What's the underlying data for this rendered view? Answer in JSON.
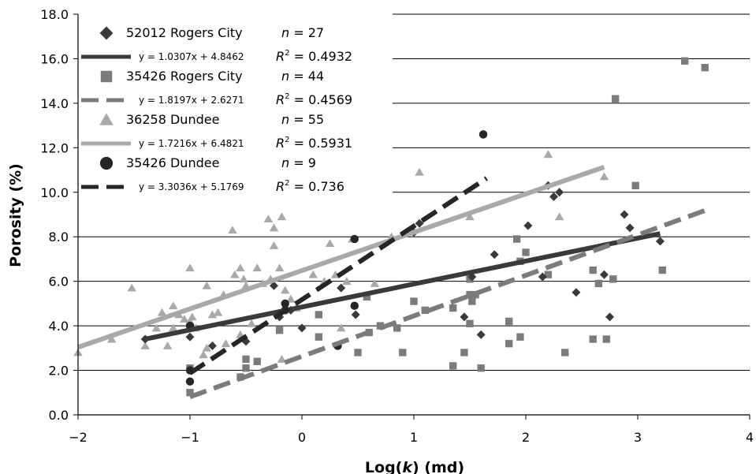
{
  "chart_data": {
    "type": "scatter",
    "xlabel_prefix": "Log(",
    "xlabel_var": "k",
    "xlabel_suffix": ") (md)",
    "ylabel": "Porosity (%)",
    "xlim": [
      -2,
      4
    ],
    "ylim": [
      0,
      18
    ],
    "x_ticks": [
      "−2",
      "−1",
      "0",
      "1",
      "2",
      "3",
      "4"
    ],
    "y_ticks": [
      "0.0",
      "2.0",
      "4.0",
      "6.0",
      "8.0",
      "10.0",
      "12.0",
      "14.0",
      "16.0",
      "18.0"
    ],
    "grid": "horizontal",
    "legend_position": "top-left",
    "series": [
      {
        "name": "52012 Rogers City",
        "n_label": "n",
        "n_value": "= 27",
        "equation": "y = 1.0307x + 4.8462",
        "r2_label": "R",
        "r2_value": "= 0.4932",
        "marker": "diamond",
        "color": "#3a3a3a",
        "line_style": "solid",
        "fit": {
          "slope": 1.0307,
          "intercept": 4.8462,
          "x_range": [
            -1.4,
            3.2
          ]
        },
        "points": [
          [
            -1.4,
            3.4
          ],
          [
            -1.0,
            3.5
          ],
          [
            -0.8,
            3.1
          ],
          [
            -0.5,
            3.3
          ],
          [
            -0.2,
            4.4
          ],
          [
            -0.1,
            4.7
          ],
          [
            0.0,
            3.9
          ],
          [
            0.35,
            5.7
          ],
          [
            0.48,
            4.5
          ],
          [
            1.05,
            8.6
          ],
          [
            1.45,
            4.4
          ],
          [
            1.52,
            6.2
          ],
          [
            1.6,
            3.6
          ],
          [
            1.72,
            7.2
          ],
          [
            2.02,
            8.5
          ],
          [
            2.15,
            6.2
          ],
          [
            2.2,
            10.3
          ],
          [
            2.25,
            9.8
          ],
          [
            2.3,
            10.0
          ],
          [
            2.45,
            5.5
          ],
          [
            2.7,
            6.3
          ],
          [
            2.75,
            4.4
          ],
          [
            2.88,
            9.0
          ],
          [
            2.93,
            8.4
          ],
          [
            3.2,
            7.8
          ],
          [
            1.0,
            8.2
          ],
          [
            -0.25,
            5.8
          ]
        ]
      },
      {
        "name": "35426 Rogers City",
        "n_label": "n",
        "n_value": "= 44",
        "equation": "y = 1.8197x + 2.6271",
        "r2_label": "R",
        "r2_value": "= 0.4569",
        "marker": "square",
        "color": "#7b7b7b",
        "line_style": "dashed",
        "fit": {
          "slope": 1.8197,
          "intercept": 2.6271,
          "x_range": [
            -1.0,
            3.6
          ]
        },
        "points": [
          [
            -1.0,
            1.0
          ],
          [
            -1.0,
            2.1
          ],
          [
            -0.5,
            2.5
          ],
          [
            -0.5,
            2.1
          ],
          [
            -0.4,
            2.4
          ],
          [
            -0.2,
            3.8
          ],
          [
            0.15,
            4.5
          ],
          [
            0.15,
            3.5
          ],
          [
            0.5,
            2.8
          ],
          [
            0.6,
            3.7
          ],
          [
            0.85,
            3.9
          ],
          [
            0.9,
            2.8
          ],
          [
            1.0,
            5.1
          ],
          [
            1.1,
            4.7
          ],
          [
            1.35,
            2.2
          ],
          [
            1.45,
            2.8
          ],
          [
            1.5,
            5.4
          ],
          [
            1.5,
            4.1
          ],
          [
            1.5,
            6.1
          ],
          [
            1.52,
            5.1
          ],
          [
            1.6,
            2.1
          ],
          [
            1.85,
            4.2
          ],
          [
            1.85,
            3.2
          ],
          [
            1.92,
            7.9
          ],
          [
            1.95,
            3.5
          ],
          [
            2.0,
            7.3
          ],
          [
            1.95,
            6.9
          ],
          [
            2.35,
            2.8
          ],
          [
            2.6,
            6.5
          ],
          [
            2.6,
            3.4
          ],
          [
            2.65,
            5.9
          ],
          [
            2.72,
            3.4
          ],
          [
            2.78,
            6.1
          ],
          [
            2.8,
            14.2
          ],
          [
            2.98,
            10.3
          ],
          [
            3.22,
            6.5
          ],
          [
            3.42,
            15.9
          ],
          [
            3.6,
            15.6
          ],
          [
            -0.55,
            1.7
          ],
          [
            0.58,
            5.3
          ],
          [
            1.55,
            5.4
          ],
          [
            2.2,
            6.3
          ],
          [
            1.35,
            4.8
          ],
          [
            0.7,
            4.0
          ]
        ]
      },
      {
        "name": "36258 Dundee",
        "n_label": "n",
        "n_value": "= 55",
        "equation": "y = 1.7216x + 6.4821",
        "r2_label": "R",
        "r2_value": "= 0.5931",
        "marker": "triangle",
        "color": "#a9a9a9",
        "line_style": "solid",
        "fit": {
          "slope": 1.7216,
          "intercept": 6.4821,
          "x_range": [
            -2.0,
            2.7
          ]
        },
        "points": [
          [
            -2.0,
            2.8
          ],
          [
            -1.7,
            3.4
          ],
          [
            -1.52,
            5.7
          ],
          [
            -1.4,
            3.1
          ],
          [
            -1.3,
            3.9
          ],
          [
            -1.2,
            3.1
          ],
          [
            -1.15,
            4.9
          ],
          [
            -1.1,
            4.5
          ],
          [
            -1.05,
            4.3
          ],
          [
            -1.0,
            6.6
          ],
          [
            -1.0,
            4.2
          ],
          [
            -0.98,
            4.4
          ],
          [
            -0.88,
            2.7
          ],
          [
            -0.85,
            5.8
          ],
          [
            -0.8,
            4.5
          ],
          [
            -0.75,
            4.6
          ],
          [
            -0.7,
            5.4
          ],
          [
            -0.68,
            3.2
          ],
          [
            -0.62,
            8.3
          ],
          [
            -0.6,
            6.3
          ],
          [
            -0.55,
            6.6
          ],
          [
            -0.52,
            6.1
          ],
          [
            -0.5,
            5.8
          ],
          [
            -0.45,
            4.1
          ],
          [
            -0.3,
            8.8
          ],
          [
            -0.28,
            6.1
          ],
          [
            -0.25,
            8.4
          ],
          [
            -0.25,
            7.6
          ],
          [
            -0.2,
            6.6
          ],
          [
            -0.18,
            8.9
          ],
          [
            -0.18,
            2.5
          ],
          [
            -0.15,
            5.6
          ],
          [
            0.1,
            6.3
          ],
          [
            0.2,
            6.0
          ],
          [
            0.25,
            7.7
          ],
          [
            0.35,
            3.9
          ],
          [
            0.4,
            6.0
          ],
          [
            0.45,
            7.9
          ],
          [
            0.65,
            5.9
          ],
          [
            0.8,
            8.0
          ],
          [
            1.05,
            10.9
          ],
          [
            1.5,
            8.9
          ],
          [
            2.2,
            11.7
          ],
          [
            2.3,
            8.9
          ],
          [
            2.7,
            10.7
          ],
          [
            -0.4,
            6.6
          ],
          [
            -0.35,
            5.9
          ],
          [
            -0.1,
            5.2
          ],
          [
            0.3,
            6.3
          ],
          [
            -0.95,
            3.9
          ],
          [
            -1.25,
            4.6
          ],
          [
            -1.15,
            3.9
          ],
          [
            -0.85,
            3.0
          ],
          [
            -0.55,
            3.6
          ],
          [
            -0.05,
            4.8
          ]
        ]
      },
      {
        "name": "35426 Dundee",
        "n_label": "n",
        "n_value": "= 9",
        "equation": "y = 3.3036x + 5.1769",
        "r2_label": "R",
        "r2_value": "= 0.736",
        "marker": "circle",
        "color": "#262626",
        "line_style": "dashed",
        "fit": {
          "slope": 3.3036,
          "intercept": 5.1769,
          "x_range": [
            -1.0,
            1.65
          ]
        },
        "points": [
          [
            -1.0,
            1.5
          ],
          [
            -1.0,
            2.0
          ],
          [
            -1.0,
            4.0
          ],
          [
            -0.15,
            5.0
          ],
          [
            -0.15,
            4.7
          ],
          [
            0.32,
            3.1
          ],
          [
            0.47,
            4.9
          ],
          [
            0.47,
            7.9
          ],
          [
            1.62,
            12.6
          ]
        ]
      }
    ]
  }
}
